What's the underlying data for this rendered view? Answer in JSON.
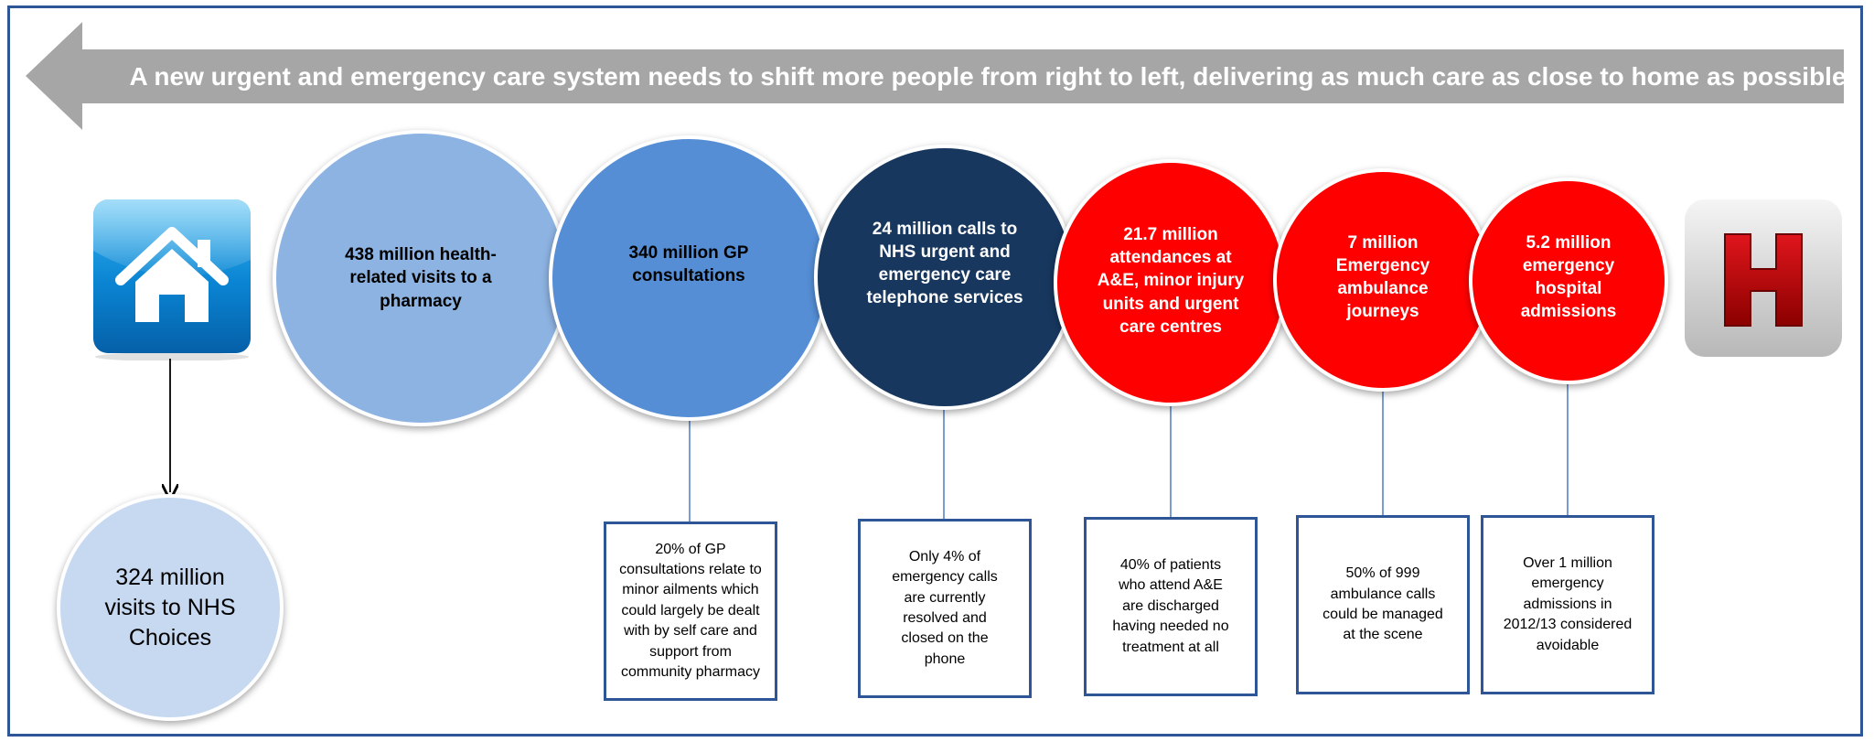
{
  "banner": {
    "text": "A new urgent and emergency care system needs to shift more people from right to left, delivering as much care as close to home as possible",
    "arrow_color": "#a6a6a6"
  },
  "icons": {
    "home": "house-icon",
    "hospital": "hospital-h-icon",
    "hospital_letter": "H"
  },
  "colors": {
    "frame": "#2e5596",
    "connector_blue": "#4a7cc4",
    "pharmacy": "#8db3e2",
    "gp": "#558ed5",
    "telephone": "#17375e",
    "emergency_red": "#ff0000",
    "nhs_choices": "#c6d9f1"
  },
  "nhs_choices": {
    "text": "324 million visits to NHS Choices"
  },
  "circles": [
    {
      "id": "pharmacy",
      "text": "438 million health-related visits to a pharmacy"
    },
    {
      "id": "gp",
      "text": "340 million GP consultations"
    },
    {
      "id": "telephone",
      "text": "24 million calls to NHS urgent and emergency care telephone services"
    },
    {
      "id": "ae",
      "text": "21.7 million attendances at A&E, minor injury units and urgent care centres"
    },
    {
      "id": "ambulance",
      "text": "7 million Emergency ambulance journeys"
    },
    {
      "id": "admissions",
      "text": "5.2 million emergency hospital admissions"
    }
  ],
  "notes": [
    {
      "id": "gp",
      "text": "20% of GP consultations relate to minor ailments which could largely be dealt with by self care and support from community pharmacy"
    },
    {
      "id": "telephone",
      "text": "Only 4% of emergency calls are currently resolved and closed on the phone"
    },
    {
      "id": "ae",
      "text": "40% of patients who attend A&E are discharged having needed no treatment at all"
    },
    {
      "id": "ambulance",
      "text": "50% of 999 ambulance calls could be managed at the scene"
    },
    {
      "id": "admissions",
      "text": "Over 1 million emergency admissions in 2012/13 considered avoidable"
    }
  ]
}
